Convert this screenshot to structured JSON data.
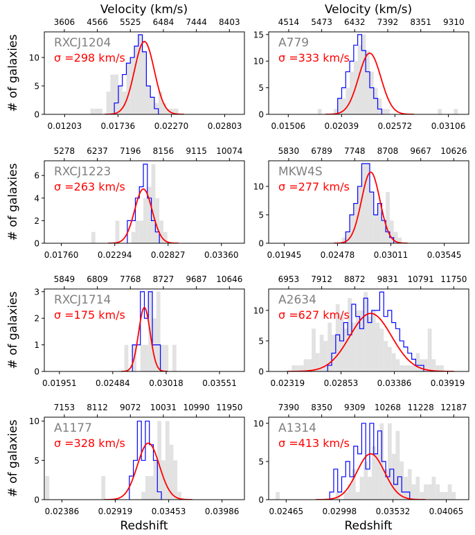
{
  "figure": {
    "top_axis_label": "Velocity (km/s)",
    "bottom_axis_label": "Redshift",
    "y_axis_label": "# of galaxies"
  },
  "colors": {
    "histogram_fill": "#e2e2e2",
    "histogram_step": "#0000ff",
    "gaussian_fit": "#ff0000",
    "cluster_name": "#808080",
    "sigma_text": "#ff0000",
    "axes": "#000000"
  },
  "chart_data": [
    {
      "type": "histogram",
      "cluster": "RXCJ1204",
      "sigma_label": "σ =298 km/s",
      "sigma_km_s": 298,
      "xlim": [
        0.01,
        0.03
      ],
      "ylim": [
        0,
        14.5
      ],
      "x_ticks": [
        0.01203,
        0.01736,
        0.0227,
        0.02803
      ],
      "x_tick_labels": [
        "0.01203",
        "0.01736",
        "0.02270",
        "0.02803"
      ],
      "top_ticks": [
        "3606",
        "4566",
        "5525",
        "6484",
        "7444",
        "8403"
      ],
      "y_ticks": [
        0,
        5,
        10
      ],
      "y_tick_labels": [
        "0",
        "5",
        "10"
      ],
      "gauss": {
        "mu": 0.02,
        "sigma": 0.00099,
        "amp": 12.8
      },
      "bins_all": {
        "start": 0.0146,
        "width": 0.0004,
        "counts": [
          1,
          1,
          1,
          0,
          4,
          7,
          7,
          5,
          4,
          9,
          10,
          12,
          14,
          11,
          5,
          3,
          2,
          4,
          2,
          1,
          1,
          1
        ]
      },
      "bins_core": {
        "start": 0.017,
        "width": 0.0004,
        "counts": [
          2,
          5,
          7,
          9,
          10,
          12,
          14,
          11,
          5,
          3,
          1
        ]
      },
      "show_ylabel": true
    },
    {
      "type": "histogram",
      "cluster": "A779",
      "sigma_label": "σ =333 km/s",
      "sigma_km_s": 333,
      "xlim": [
        0.0131,
        0.0331
      ],
      "ylim": [
        0,
        15.5
      ],
      "x_ticks": [
        0.01506,
        0.02039,
        0.02572,
        0.03106
      ],
      "x_tick_labels": [
        "0.01506",
        "0.02039",
        "0.02572",
        "0.03106"
      ],
      "top_ticks": [
        "4514",
        "5473",
        "6432",
        "7392",
        "8351",
        "9310"
      ],
      "y_ticks": [
        0,
        5,
        10,
        15
      ],
      "y_tick_labels": [
        "0",
        "5",
        "10",
        "15"
      ],
      "gauss": {
        "mu": 0.0232,
        "sigma": 0.00111,
        "amp": 11.5
      },
      "bins_all": {
        "start": 0.018,
        "width": 0.0004,
        "counts": [
          1,
          0,
          0,
          0,
          1,
          3,
          3,
          5,
          8,
          10,
          13,
          15,
          12,
          8,
          5,
          3,
          1,
          1,
          0,
          0,
          0,
          0,
          0,
          0,
          0,
          0,
          0,
          0,
          0,
          0,
          1,
          0,
          0,
          0,
          1
        ]
      },
      "bins_core": {
        "start": 0.02,
        "width": 0.0004,
        "counts": [
          3,
          5,
          8,
          10,
          13,
          15,
          12,
          8,
          5,
          3,
          1
        ]
      },
      "show_ylabel": false
    },
    {
      "type": "histogram",
      "cluster": "RXCJ1223",
      "sigma_label": "σ =263 km/s",
      "sigma_km_s": 263,
      "xlim": [
        0.0159,
        0.0359
      ],
      "ylim": [
        0,
        7.3
      ],
      "x_ticks": [
        0.0176,
        0.02294,
        0.02827,
        0.0336
      ],
      "x_tick_labels": [
        "0.01760",
        "0.02294",
        "0.02827",
        "0.03360"
      ],
      "top_ticks": [
        "5278",
        "6237",
        "7196",
        "8156",
        "9115",
        "10074"
      ],
      "y_ticks": [
        0,
        2,
        4,
        6
      ],
      "y_tick_labels": [
        "0",
        "2",
        "4",
        "6"
      ],
      "gauss": {
        "mu": 0.0258,
        "sigma": 0.00088,
        "amp": 4.8
      },
      "bins_all": {
        "start": 0.0206,
        "width": 0.0004,
        "counts": [
          1,
          0,
          0,
          0,
          0,
          0,
          2,
          0,
          0,
          0,
          1,
          2,
          2,
          4,
          5,
          7,
          4,
          2,
          1
        ]
      },
      "bins_core": {
        "start": 0.0242,
        "width": 0.0004,
        "counts": [
          2,
          2,
          4,
          5,
          7,
          4,
          2,
          1
        ]
      },
      "show_ylabel": true
    },
    {
      "type": "histogram",
      "cluster": "MKW4S",
      "sigma_label": "σ =277 km/s",
      "sigma_km_s": 277,
      "xlim": [
        0.0179,
        0.0379
      ],
      "ylim": [
        0,
        14.5
      ],
      "x_ticks": [
        0.01945,
        0.02478,
        0.03011,
        0.03545
      ],
      "x_tick_labels": [
        "0.01945",
        "0.02478",
        "0.03011",
        "0.03545"
      ],
      "top_ticks": [
        "5830",
        "6789",
        "7748",
        "8708",
        "9667",
        "10626"
      ],
      "y_ticks": [
        0,
        5,
        10
      ],
      "y_tick_labels": [
        "0",
        "5",
        "10"
      ],
      "gauss": {
        "mu": 0.0281,
        "sigma": 0.00092,
        "amp": 12.5
      },
      "bins_all": {
        "start": 0.0252,
        "width": 0.0004,
        "counts": [
          1,
          2,
          5,
          7,
          10,
          14,
          14,
          9,
          5,
          7,
          4,
          9,
          4,
          2,
          1
        ]
      },
      "bins_core": {
        "start": 0.0256,
        "width": 0.0004,
        "counts": [
          2,
          5,
          7,
          10,
          14,
          14,
          9,
          5,
          7,
          4,
          2,
          1
        ]
      },
      "show_ylabel": false
    },
    {
      "type": "histogram",
      "cluster": "RXCJ1714",
      "sigma_label": "σ =175 km/s",
      "sigma_km_s": 175,
      "xlim": [
        0.018,
        0.038
      ],
      "ylim": [
        0,
        3.1
      ],
      "x_ticks": [
        0.01951,
        0.02484,
        0.03018,
        0.03551
      ],
      "x_tick_labels": [
        "0.01951",
        "0.02484",
        "0.03018",
        "0.03551"
      ],
      "top_ticks": [
        "5849",
        "6809",
        "7768",
        "8727",
        "9687",
        "10646"
      ],
      "y_ticks": [
        0,
        1,
        2,
        3
      ],
      "y_tick_labels": [
        "0",
        "1",
        "2",
        "3"
      ],
      "gauss": {
        "mu": 0.028,
        "sigma": 0.00058,
        "amp": 2.4
      },
      "bins_all": {
        "start": 0.026,
        "width": 0.0004,
        "counts": [
          1,
          0,
          1,
          0,
          1,
          1,
          3,
          2,
          3,
          1,
          1,
          0,
          1
        ]
      },
      "bins_core": {
        "start": 0.0268,
        "width": 0.0004,
        "counts": [
          1,
          1,
          3,
          2,
          3,
          1,
          1
        ]
      },
      "show_ylabel": true
    },
    {
      "type": "histogram",
      "cluster": "A2634",
      "sigma_label": "σ =627 km/s",
      "sigma_km_s": 627,
      "xlim": [
        0.0213,
        0.0413
      ],
      "ylim": [
        0,
        13.5
      ],
      "x_ticks": [
        0.02319,
        0.02853,
        0.03386,
        0.03919
      ],
      "x_tick_labels": [
        "0.02319",
        "0.02853",
        "0.03386",
        "0.03919"
      ],
      "top_ticks": [
        "6953",
        "7912",
        "8872",
        "9831",
        "10791",
        "11750"
      ],
      "y_ticks": [
        0,
        5,
        10
      ],
      "y_tick_labels": [
        "0",
        "5",
        "10"
      ],
      "gauss": {
        "mu": 0.0315,
        "sigma": 0.00209,
        "amp": 9.5
      },
      "bins_all": {
        "start": 0.0236,
        "width": 0.0004,
        "counts": [
          1,
          1,
          1,
          2,
          2,
          7,
          3,
          6,
          5,
          8,
          6,
          11,
          9,
          7,
          12,
          8,
          10,
          10,
          13,
          9,
          10,
          8,
          7,
          5,
          4,
          3,
          2,
          1,
          1,
          1,
          1,
          3,
          2,
          2,
          7,
          2,
          1,
          1
        ]
      },
      "bins_core": {
        "start": 0.0272,
        "width": 0.0004,
        "counts": [
          1,
          3,
          6,
          5,
          8,
          6,
          11,
          9,
          7,
          12,
          8,
          10,
          10,
          13,
          9,
          10,
          8,
          7,
          5,
          4,
          3,
          2,
          1,
          1
        ]
      },
      "show_ylabel": false
    },
    {
      "type": "histogram",
      "cluster": "A1177",
      "sigma_label": "σ =328 km/s",
      "sigma_km_s": 328,
      "xlim": [
        0.0221,
        0.0421
      ],
      "ylim": [
        0,
        10.5
      ],
      "x_ticks": [
        0.02386,
        0.02919,
        0.03453,
        0.03986
      ],
      "x_tick_labels": [
        "0.02386",
        "0.02919",
        "0.03453",
        "0.03986"
      ],
      "top_ticks": [
        "7153",
        "8112",
        "9072",
        "10031",
        "10990",
        "11950"
      ],
      "y_ticks": [
        0,
        5,
        10
      ],
      "y_tick_labels": [
        "0",
        "5",
        "10"
      ],
      "gauss": {
        "mu": 0.0325,
        "sigma": 0.0011,
        "amp": 7.2
      },
      "bins_all": {
        "start": 0.0222,
        "width": 0.0004,
        "counts": [
          3,
          0,
          0,
          0,
          0,
          0,
          0,
          0,
          0,
          0,
          0,
          0,
          0,
          0,
          3,
          0,
          0,
          0,
          0,
          0,
          0,
          0,
          0,
          0,
          1,
          3,
          3,
          5,
          10,
          5,
          10,
          7,
          5,
          1
        ]
      },
      "bins_core": {
        "start": 0.0306,
        "width": 0.0004,
        "counts": [
          3,
          5,
          10,
          5,
          10,
          7,
          5,
          1
        ]
      },
      "show_ylabel": true
    },
    {
      "type": "histogram",
      "cluster": "A1314",
      "sigma_label": "σ =413 km/s",
      "sigma_km_s": 413,
      "xlim": [
        0.0229,
        0.0429
      ],
      "ylim": [
        0,
        10.8
      ],
      "x_ticks": [
        0.02465,
        0.02998,
        0.03532,
        0.04065
      ],
      "x_tick_labels": [
        "0.02465",
        "0.02998",
        "0.03532",
        "0.04065"
      ],
      "top_ticks": [
        "7390",
        "8350",
        "9309",
        "10268",
        "11228",
        "12187"
      ],
      "y_ticks": [
        0,
        5,
        10
      ],
      "y_tick_labels": [
        "0",
        "5",
        "10"
      ],
      "gauss": {
        "mu": 0.0331,
        "sigma": 0.00138,
        "amp": 6.0
      },
      "bins_all": {
        "start": 0.0228,
        "width": 0.0004,
        "counts": [
          0,
          0,
          1,
          0,
          0,
          0,
          0,
          0,
          0,
          0,
          0,
          0,
          0,
          0,
          0,
          0,
          0,
          1,
          0,
          1,
          2,
          4,
          1,
          3,
          5,
          3,
          7,
          6,
          10,
          4,
          10,
          6,
          9,
          5,
          3,
          4,
          2,
          3,
          1,
          2,
          2,
          3,
          2,
          1,
          1,
          2,
          1
        ]
      },
      "bins_core": {
        "start": 0.029,
        "width": 0.0004,
        "counts": [
          1,
          4,
          1,
          3,
          5,
          3,
          7,
          6,
          10,
          4,
          10,
          6,
          9,
          5,
          3,
          4,
          2,
          3,
          1,
          1
        ]
      },
      "show_ylabel": false
    }
  ]
}
